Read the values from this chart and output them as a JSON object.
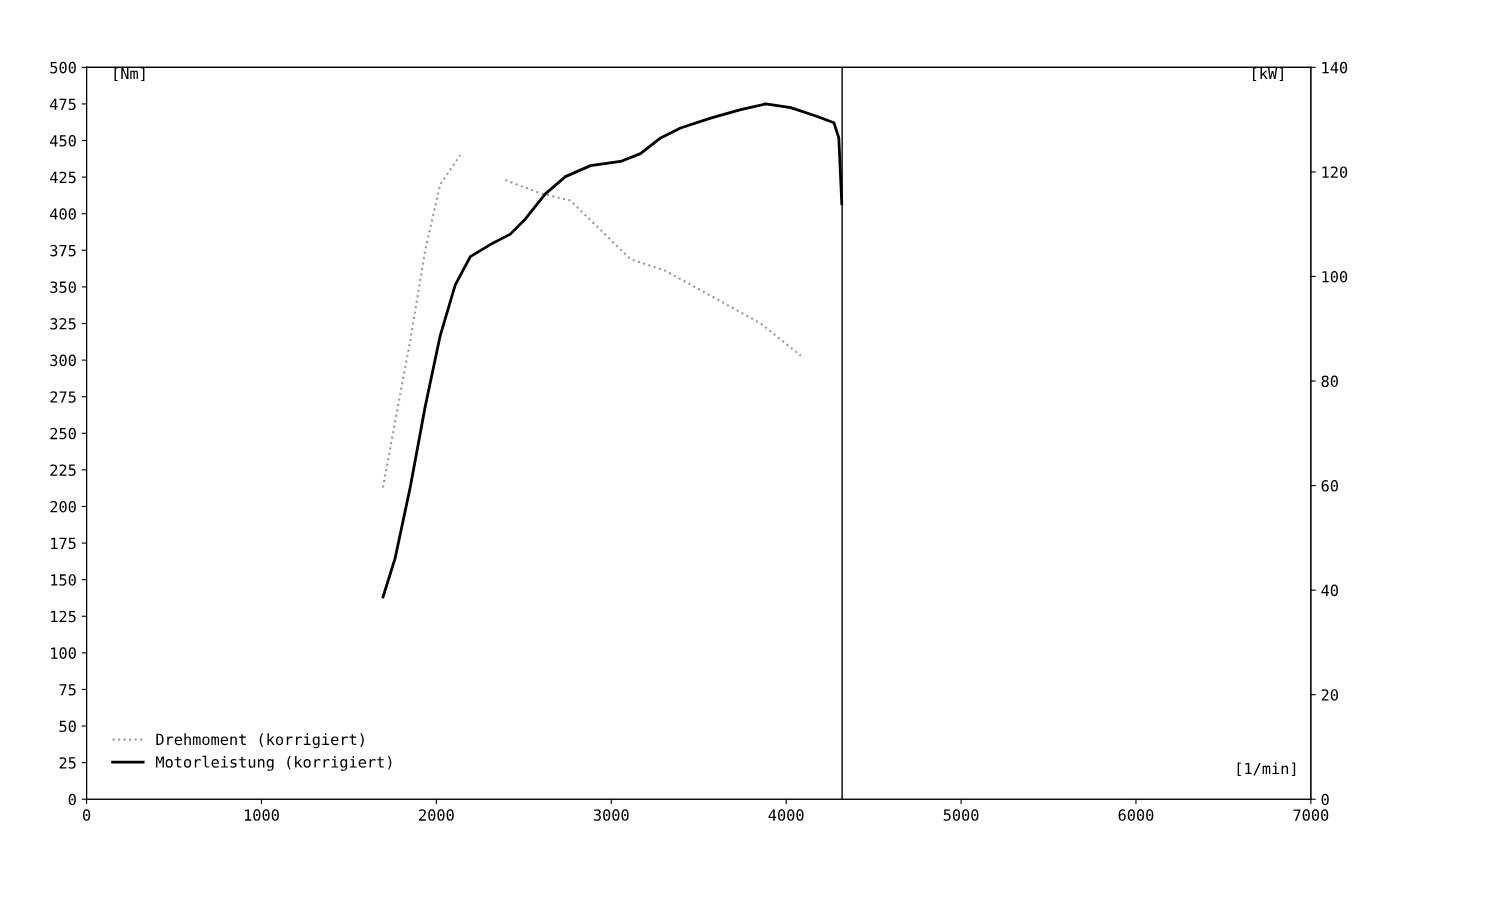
{
  "chart_data": {
    "type": "line",
    "ylabel": "[Nm]",
    "y2label": "[kW]",
    "xlabel": "[1/min]",
    "xlim": [
      0,
      7000
    ],
    "xticks": [
      0,
      1000,
      2000,
      3000,
      4000,
      5000,
      6000,
      7000
    ],
    "ylim": [
      0,
      500
    ],
    "yticks": [
      0,
      25,
      50,
      75,
      100,
      125,
      150,
      175,
      200,
      225,
      250,
      275,
      300,
      325,
      350,
      375,
      400,
      425,
      450,
      475,
      500
    ],
    "y2lim": [
      0,
      140
    ],
    "y2ticks": [
      0,
      20,
      40,
      60,
      80,
      100,
      120,
      140
    ],
    "grid": false,
    "legend": "bottom left",
    "series": [
      {
        "name": "Drehmoment (korrigiert)",
        "color": "#999999",
        "line_style": "dotted",
        "axis": "y",
        "x": [
          1695,
          1764,
          1850,
          1936,
          2022,
          2136,
          2260,
          2394,
          2595,
          2766,
          2938,
          3110,
          3310,
          3568,
          3855,
          4084
        ],
        "values": [
          213,
          258,
          313,
          375,
          420,
          440,
          null,
          423,
          414,
          409,
          389,
          369,
          361,
          344,
          325,
          303
        ]
      },
      {
        "name": "Motorleistung (korrigiert)",
        "color": "#000000",
        "line_style": "solid",
        "axis": "y2",
        "x": [
          1695,
          1764,
          1850,
          1936,
          2022,
          2108,
          2194,
          2308,
          2423,
          2509,
          2623,
          2738,
          2881,
          3053,
          3167,
          3282,
          3396,
          3568,
          3740,
          3883,
          4026,
          4170,
          4273,
          4301,
          4318
        ],
        "values": [
          38.7,
          46.1,
          59.6,
          75.1,
          88.7,
          98.4,
          103.8,
          106.1,
          108.1,
          111.0,
          115.8,
          119.1,
          121.2,
          122.0,
          123.5,
          126.5,
          128.4,
          130.3,
          131.9,
          133.0,
          132.3,
          130.7,
          129.4,
          126.5,
          113.9
        ]
      }
    ],
    "ref_lines": [
      {
        "axis": "x",
        "value": 4320,
        "color": "#000000"
      }
    ]
  }
}
